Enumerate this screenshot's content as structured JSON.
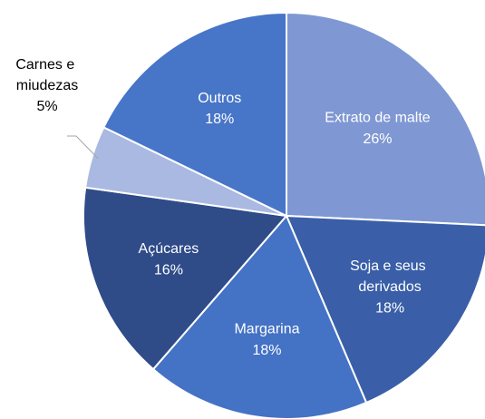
{
  "chart_data": {
    "type": "pie",
    "categories": [
      "Extrato de malte",
      "Soja e seus derivados",
      "Margarina",
      "Açúcares",
      "Carnes e miudezas",
      "Outros"
    ],
    "values": [
      26,
      18,
      18,
      16,
      5,
      18
    ],
    "value_labels": [
      "26%",
      "18%",
      "18%",
      "16%",
      "5%",
      "18%"
    ],
    "colors": [
      "#7f98d3",
      "#3a5fa8",
      "#4472c4",
      "#2f4b88",
      "#a9b9e2",
      "#4775c8"
    ]
  }
}
